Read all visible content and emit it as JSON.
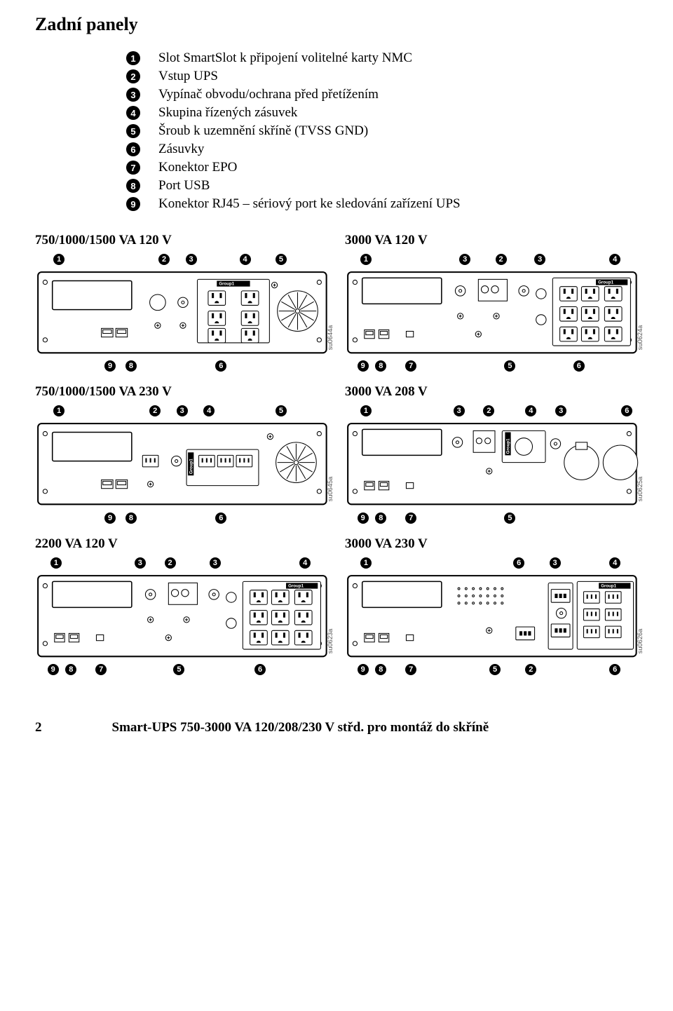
{
  "title": "Zadní panely",
  "legend": [
    {
      "n": "1",
      "t": "Slot SmartSlot k připojení volitelné karty NMC"
    },
    {
      "n": "2",
      "t": "Vstup UPS"
    },
    {
      "n": "3",
      "t": "Vypínač obvodu/ochrana před přetížením"
    },
    {
      "n": "4",
      "t": "Skupina řízených zásuvek"
    },
    {
      "n": "5",
      "t": "Šroub k uzemnění skříně (TVSS GND)"
    },
    {
      "n": "6",
      "t": "Zásuvky"
    },
    {
      "n": "7",
      "t": "Konektor EPO"
    },
    {
      "n": "8",
      "t": "Port USB"
    },
    {
      "n": "9",
      "t": "Konektor RJ45 – sériový port ke sledování zařízení UPS"
    }
  ],
  "panels": [
    {
      "label": "750/1000/1500 VA 120 V",
      "code": "su0644a",
      "variant": "p120small",
      "top": [
        {
          "n": "1",
          "x": 8
        },
        {
          "n": "2",
          "x": 43
        },
        {
          "n": "3",
          "x": 52
        },
        {
          "n": "4",
          "x": 70
        },
        {
          "n": "5",
          "x": 82
        }
      ],
      "bot": [
        {
          "n": "9",
          "x": 25
        },
        {
          "n": "8",
          "x": 32
        },
        {
          "n": "6",
          "x": 62
        }
      ]
    },
    {
      "label": "3000 VA 120 V",
      "code": "su0624a",
      "variant": "p3000_120",
      "top": [
        {
          "n": "1",
          "x": 7
        },
        {
          "n": "3",
          "x": 40
        },
        {
          "n": "2",
          "x": 52
        },
        {
          "n": "3",
          "x": 65
        },
        {
          "n": "4",
          "x": 90
        }
      ],
      "bot": [
        {
          "n": "9",
          "x": 6
        },
        {
          "n": "8",
          "x": 12
        },
        {
          "n": "7",
          "x": 22
        },
        {
          "n": "5",
          "x": 55
        },
        {
          "n": "6",
          "x": 78
        }
      ]
    },
    {
      "label": "750/1000/1500 VA 230 V",
      "code": "su0645a",
      "variant": "p230small",
      "top": [
        {
          "n": "1",
          "x": 8
        },
        {
          "n": "2",
          "x": 40
        },
        {
          "n": "3",
          "x": 49
        },
        {
          "n": "4",
          "x": 58
        },
        {
          "n": "5",
          "x": 82
        }
      ],
      "bot": [
        {
          "n": "9",
          "x": 25
        },
        {
          "n": "8",
          "x": 32
        },
        {
          "n": "6",
          "x": 62
        }
      ]
    },
    {
      "label": "3000 VA 208 V",
      "code": "su0625a",
      "variant": "p3000_208",
      "top": [
        {
          "n": "1",
          "x": 7
        },
        {
          "n": "3",
          "x": 38
        },
        {
          "n": "2",
          "x": 48
        },
        {
          "n": "4",
          "x": 62
        },
        {
          "n": "3",
          "x": 72
        },
        {
          "n": "6",
          "x": 94
        }
      ],
      "bot": [
        {
          "n": "9",
          "x": 6
        },
        {
          "n": "8",
          "x": 12
        },
        {
          "n": "7",
          "x": 22
        },
        {
          "n": "5",
          "x": 55
        }
      ]
    },
    {
      "label": "2200 VA 120 V",
      "code": "su0623a",
      "variant": "p2200_120",
      "top": [
        {
          "n": "1",
          "x": 7
        },
        {
          "n": "3",
          "x": 35
        },
        {
          "n": "2",
          "x": 45
        },
        {
          "n": "3",
          "x": 60
        },
        {
          "n": "4",
          "x": 90
        }
      ],
      "bot": [
        {
          "n": "9",
          "x": 6
        },
        {
          "n": "8",
          "x": 12
        },
        {
          "n": "7",
          "x": 22
        },
        {
          "n": "5",
          "x": 48
        },
        {
          "n": "6",
          "x": 75
        }
      ]
    },
    {
      "label": "3000 VA 230 V",
      "code": "su0626a",
      "variant": "p3000_230",
      "top": [
        {
          "n": "1",
          "x": 7
        },
        {
          "n": "6",
          "x": 58
        },
        {
          "n": "3",
          "x": 70
        },
        {
          "n": "4",
          "x": 90
        }
      ],
      "bot": [
        {
          "n": "9",
          "x": 6
        },
        {
          "n": "8",
          "x": 12
        },
        {
          "n": "7",
          "x": 22
        },
        {
          "n": "5",
          "x": 50
        },
        {
          "n": "2",
          "x": 62
        },
        {
          "n": "6",
          "x": 90
        }
      ]
    }
  ],
  "group1_label": "Group1",
  "footer_page": "2",
  "footer_text": "Smart-UPS 750-3000 VA 120/208/230 V střd. pro montáž do skříně"
}
